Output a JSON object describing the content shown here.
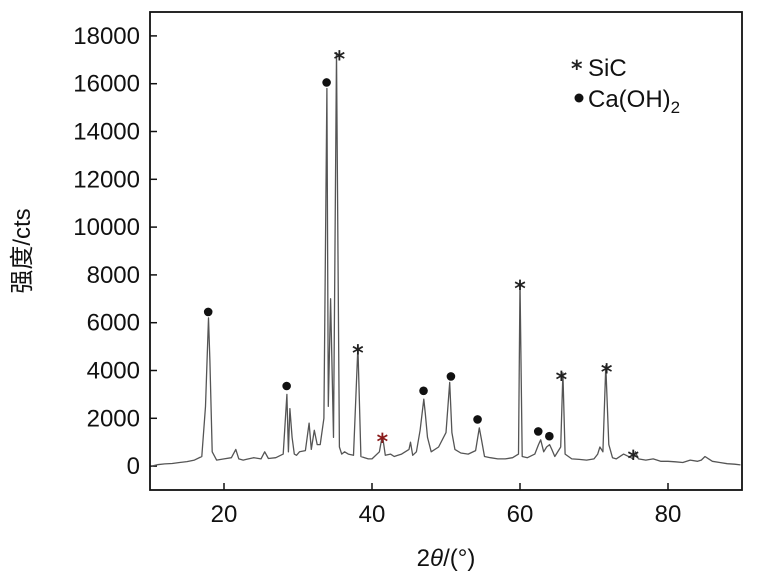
{
  "chart_data": {
    "type": "line",
    "xlabel": "2θ/(°)",
    "ylabel": "强度/cts",
    "xlim": [
      10,
      90
    ],
    "ylim": [
      -1000,
      19000
    ],
    "x_ticks": [
      20,
      40,
      60,
      80
    ],
    "y_ticks": [
      0,
      2000,
      4000,
      6000,
      8000,
      10000,
      12000,
      14000,
      16000,
      18000
    ],
    "grid": false,
    "legend_position": "top-right",
    "legend": [
      {
        "label": "SiC",
        "marker": "star"
      },
      {
        "label": "Ca(OH)2",
        "marker": "dot"
      }
    ],
    "series": [
      {
        "line_color": "#555555",
        "x": [
          10.2,
          11,
          12,
          13,
          14,
          15,
          16,
          17,
          17.5,
          17.9,
          18.1,
          18.4,
          19,
          20,
          21,
          21.6,
          22,
          22.6,
          23,
          24,
          25,
          25.5,
          26,
          27,
          28,
          28.5,
          28.7,
          28.9,
          29.2,
          29.5,
          29.8,
          30.2,
          31,
          31.5,
          31.8,
          32.2,
          32.6,
          33,
          33.5,
          33.9,
          34.1,
          34.4,
          34.8,
          35.2,
          35.6,
          35.9,
          36.3,
          36.8,
          37.5,
          38.1,
          38.5,
          39,
          39.5,
          40,
          41,
          41.4,
          41.8,
          42.5,
          43,
          43.5,
          44,
          45,
          45.2,
          45.5,
          46,
          46.5,
          47,
          47.2,
          47.5,
          48,
          49,
          50,
          50.5,
          50.8,
          51.2,
          52,
          53,
          54,
          54.5,
          54.8,
          55.2,
          56,
          57,
          58,
          59,
          59.8,
          60,
          60.3,
          61,
          62,
          62.5,
          62.8,
          63.2,
          63.6,
          64,
          64.3,
          64.7,
          65,
          65.5,
          65.8,
          66.1,
          67,
          68,
          69,
          70,
          70.5,
          70.8,
          71.2,
          71.6,
          72,
          72.5,
          73,
          74,
          75,
          75.3,
          75.6,
          76,
          77,
          78,
          79,
          80,
          81,
          82,
          83,
          84,
          84.5,
          85,
          85.5,
          86,
          87,
          88,
          89,
          89.8
        ],
        "y": [
          0,
          60,
          90,
          110,
          150,
          190,
          250,
          400,
          2500,
          6200,
          4400,
          600,
          250,
          300,
          350,
          700,
          300,
          250,
          280,
          350,
          300,
          600,
          320,
          350,
          500,
          3000,
          600,
          2400,
          1200,
          500,
          450,
          600,
          650,
          1800,
          700,
          1500,
          900,
          900,
          2000,
          15800,
          2500,
          7000,
          1200,
          17300,
          800,
          500,
          600,
          500,
          450,
          5000,
          400,
          350,
          300,
          300,
          600,
          1300,
          450,
          500,
          400,
          450,
          500,
          700,
          1000,
          450,
          600,
          1500,
          2800,
          2200,
          1200,
          600,
          800,
          1400,
          3500,
          1400,
          700,
          550,
          500,
          650,
          1600,
          1100,
          400,
          350,
          300,
          300,
          350,
          500,
          7700,
          400,
          350,
          500,
          900,
          1100,
          600,
          800,
          900,
          700,
          400,
          550,
          800,
          3900,
          500,
          300,
          280,
          250,
          300,
          500,
          800,
          600,
          4200,
          900,
          350,
          300,
          500,
          350,
          300,
          600,
          300,
          250,
          300,
          200,
          200,
          180,
          150,
          250,
          200,
          250,
          400,
          300,
          200,
          150,
          100,
          80,
          50
        ]
      }
    ],
    "annotations": [
      {
        "marker": "dot",
        "phase": "Ca(OH)2",
        "x": 18.0,
        "y": 6200
      },
      {
        "marker": "dot",
        "phase": "Ca(OH)2",
        "x": 28.6,
        "y": 3100
      },
      {
        "marker": "dot",
        "phase": "Ca(OH)2",
        "x": 34.0,
        "y": 15800
      },
      {
        "marker": "dot",
        "phase": "Ca(OH)2",
        "x": 47.1,
        "y": 2900
      },
      {
        "marker": "dot",
        "phase": "Ca(OH)2",
        "x": 50.8,
        "y": 3500
      },
      {
        "marker": "dot",
        "phase": "Ca(OH)2",
        "x": 54.4,
        "y": 1700
      },
      {
        "marker": "dot",
        "phase": "Ca(OH)2",
        "x": 62.6,
        "y": 1200
      },
      {
        "marker": "dot",
        "phase": "Ca(OH)2",
        "x": 64.1,
        "y": 1000
      },
      {
        "marker": "star",
        "phase": "SiC",
        "x": 35.6,
        "y": 17300,
        "color": "#222222"
      },
      {
        "marker": "star",
        "phase": "SiC",
        "x": 38.1,
        "y": 5000,
        "color": "#222222"
      },
      {
        "marker": "star",
        "phase": "SiC",
        "x": 41.4,
        "y": 1300,
        "color": "#8a1a1a"
      },
      {
        "marker": "star",
        "phase": "SiC",
        "x": 60.0,
        "y": 7700,
        "color": "#222222"
      },
      {
        "marker": "star",
        "phase": "SiC",
        "x": 65.6,
        "y": 3900,
        "color": "#222222"
      },
      {
        "marker": "star",
        "phase": "SiC",
        "x": 71.7,
        "y": 4200,
        "color": "#222222"
      },
      {
        "marker": "star",
        "phase": "SiC",
        "x": 75.3,
        "y": 600,
        "color": "#222222"
      }
    ]
  }
}
